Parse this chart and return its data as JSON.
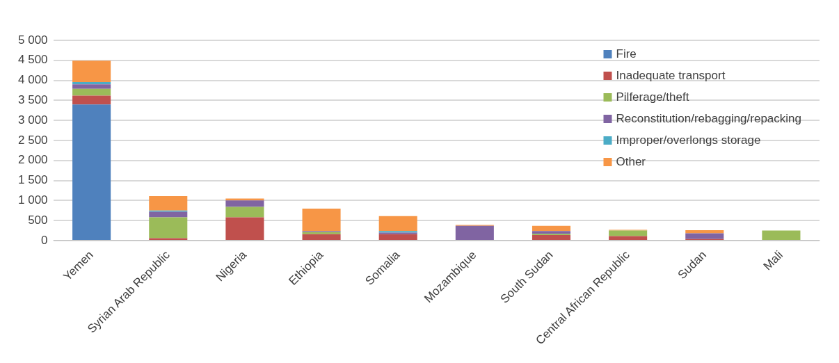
{
  "chart_data": {
    "type": "bar",
    "stacked": true,
    "categories": [
      "Yemen",
      "Syrian Arab Republic",
      "Nigeria",
      "Ethiopia",
      "Somalia",
      "Mozambique",
      "South Sudan",
      "Central African Republic",
      "Sudan",
      "Mali"
    ],
    "series": [
      {
        "name": "Fire",
        "color": "#4f81bd",
        "values": [
          3400,
          0,
          0,
          0,
          0,
          0,
          0,
          0,
          0,
          0
        ]
      },
      {
        "name": "Inadequate transport",
        "color": "#c0504d",
        "values": [
          220,
          60,
          580,
          160,
          160,
          0,
          140,
          110,
          40,
          0
        ]
      },
      {
        "name": "Pilferage/theft",
        "color": "#9bbb59",
        "values": [
          170,
          520,
          260,
          50,
          0,
          0,
          30,
          140,
          0,
          250
        ]
      },
      {
        "name": "Reconstitution/rebagging/repacking",
        "color": "#8064a2",
        "values": [
          110,
          140,
          160,
          30,
          40,
          370,
          70,
          0,
          140,
          0
        ]
      },
      {
        "name": "Improper/overlongs storage",
        "color": "#4bacc6",
        "values": [
          60,
          30,
          0,
          0,
          40,
          0,
          0,
          0,
          0,
          0
        ]
      },
      {
        "name": "Other",
        "color": "#f79646",
        "values": [
          530,
          360,
          50,
          560,
          370,
          20,
          130,
          20,
          80,
          0
        ]
      }
    ],
    "ylim": [
      0,
      5000
    ],
    "yticks": [
      {
        "value": 0,
        "label": "0"
      },
      {
        "value": 500,
        "label": "500"
      },
      {
        "value": 1000,
        "label": "1 000"
      },
      {
        "value": 1500,
        "label": "1 500"
      },
      {
        "value": 2000,
        "label": "2 000"
      },
      {
        "value": 2500,
        "label": "2 500"
      },
      {
        "value": 3000,
        "label": "3 000"
      },
      {
        "value": 3500,
        "label": "3 500"
      },
      {
        "value": 4000,
        "label": "4 000"
      },
      {
        "value": 4500,
        "label": "4 500"
      },
      {
        "value": 5000,
        "label": "5 000"
      }
    ],
    "grid": "y",
    "legend": "top right"
  }
}
